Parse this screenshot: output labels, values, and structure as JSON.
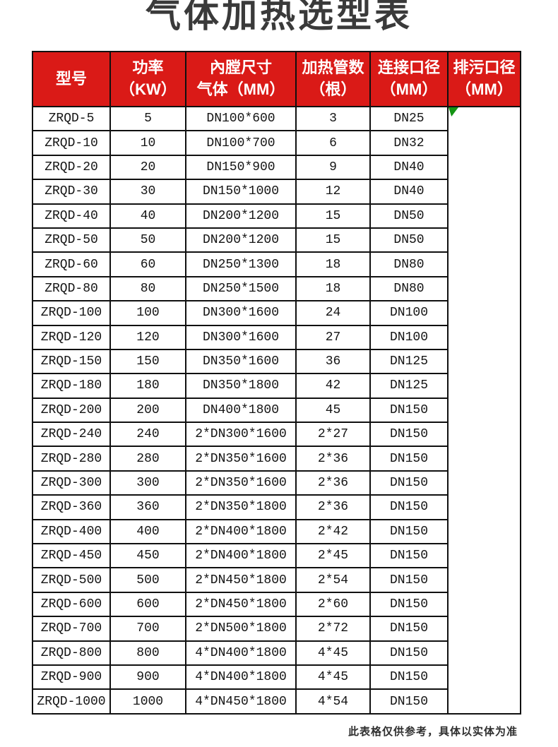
{
  "title": "气体加热选型表",
  "note": "此表格仅供参考，具体以实体为准",
  "colors": {
    "header_bg": "#da1a17",
    "header_text": "#ffffff",
    "border": "#101010",
    "title_color": "#3a3a3a",
    "note_color": "#2e2e2e",
    "marker_green": "#149414"
  },
  "icons": {
    "corner_marker": "green-corner-triangle"
  },
  "table": {
    "columns": [
      {
        "id": "model",
        "label_lines": [
          "型号"
        ]
      },
      {
        "id": "power",
        "label_lines": [
          "功率",
          "（KW）"
        ]
      },
      {
        "id": "chamber",
        "label_lines": [
          "內膛尺寸",
          "气体（MM）"
        ]
      },
      {
        "id": "tubes",
        "label_lines": [
          "加热管数",
          "（根）"
        ]
      },
      {
        "id": "connection",
        "label_lines": [
          "连接口径",
          "（MM）"
        ]
      },
      {
        "id": "drain",
        "label_lines": [
          "排污口径",
          "（MM）"
        ]
      }
    ],
    "rows": [
      [
        "ZRQD-5",
        "5",
        "DN100*600",
        "3",
        "DN25"
      ],
      [
        "ZRQD-10",
        "10",
        "DN100*700",
        "6",
        "DN32"
      ],
      [
        "ZRQD-20",
        "20",
        "DN150*900",
        "9",
        "DN40"
      ],
      [
        "ZRQD-30",
        "30",
        "DN150*1000",
        "12",
        "DN40"
      ],
      [
        "ZRQD-40",
        "40",
        "DN200*1200",
        "15",
        "DN50"
      ],
      [
        "ZRQD-50",
        "50",
        "DN200*1200",
        "15",
        "DN50"
      ],
      [
        "ZRQD-60",
        "60",
        "DN250*1300",
        "18",
        "DN80"
      ],
      [
        "ZRQD-80",
        "80",
        "DN250*1500",
        "18",
        "DN80"
      ],
      [
        "ZRQD-100",
        "100",
        "DN300*1600",
        "24",
        "DN100"
      ],
      [
        "ZRQD-120",
        "120",
        "DN300*1600",
        "27",
        "DN100"
      ],
      [
        "ZRQD-150",
        "150",
        "DN350*1600",
        "36",
        "DN125"
      ],
      [
        "ZRQD-180",
        "180",
        "DN350*1800",
        "42",
        "DN125"
      ],
      [
        "ZRQD-200",
        "200",
        "DN400*1800",
        "45",
        "DN150"
      ],
      [
        "ZRQD-240",
        "240",
        "2*DN300*1600",
        "2*27",
        "DN150"
      ],
      [
        "ZRQD-280",
        "280",
        "2*DN350*1600",
        "2*36",
        "DN150"
      ],
      [
        "ZRQD-300",
        "300",
        "2*DN350*1600",
        "2*36",
        "DN150"
      ],
      [
        "ZRQD-360",
        "360",
        "2*DN350*1800",
        "2*36",
        "DN150"
      ],
      [
        "ZRQD-400",
        "400",
        "2*DN400*1800",
        "2*42",
        "DN150"
      ],
      [
        "ZRQD-450",
        "450",
        "2*DN400*1800",
        "2*45",
        "DN150"
      ],
      [
        "ZRQD-500",
        "500",
        "2*DN450*1800",
        "2*54",
        "DN150"
      ],
      [
        "ZRQD-600",
        "600",
        "2*DN450*1800",
        "2*60",
        "DN150"
      ],
      [
        "ZRQD-700",
        "700",
        "2*DN500*1800",
        "2*72",
        "DN150"
      ],
      [
        "ZRQD-800",
        "800",
        "4*DN400*1800",
        "4*45",
        "DN150"
      ],
      [
        "ZRQD-900",
        "900",
        "4*DN400*1800",
        "4*45",
        "DN150"
      ],
      [
        "ZRQD-1000",
        "1000",
        "4*DN450*1800",
        "4*54",
        "DN150"
      ]
    ],
    "merged_drain_value": ""
  }
}
